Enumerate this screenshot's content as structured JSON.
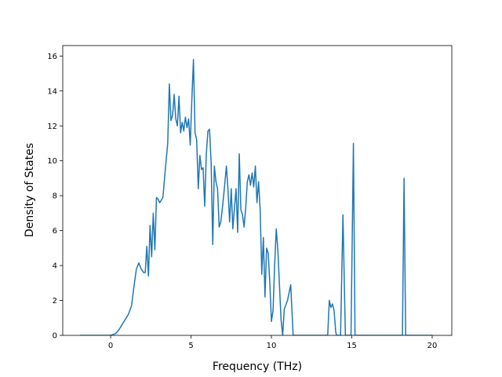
{
  "chart_data": {
    "type": "line",
    "x_label": "Frequency (THz)",
    "y_label": "Density of States",
    "color": "#1f77b4",
    "x": [
      -1.9,
      0,
      0.3,
      0.5,
      0.7,
      0.9,
      1.1,
      1.3,
      1.45,
      1.6,
      1.75,
      1.9,
      2.05,
      2.15,
      2.25,
      2.35,
      2.45,
      2.55,
      2.65,
      2.75,
      2.85,
      2.95,
      3.05,
      3.25,
      3.4,
      3.55,
      3.65,
      3.75,
      3.85,
      3.95,
      4.05,
      4.15,
      4.25,
      4.35,
      4.45,
      4.55,
      4.65,
      4.75,
      4.85,
      4.95,
      5.05,
      5.15,
      5.25,
      5.35,
      5.45,
      5.55,
      5.65,
      5.75,
      5.85,
      5.95,
      6.05,
      6.15,
      6.25,
      6.35,
      6.45,
      6.55,
      6.65,
      6.75,
      6.85,
      6.95,
      7.05,
      7.2,
      7.3,
      7.4,
      7.5,
      7.6,
      7.7,
      7.8,
      7.9,
      8.0,
      8.1,
      8.2,
      8.3,
      8.4,
      8.5,
      8.6,
      8.7,
      8.8,
      8.9,
      9.0,
      9.1,
      9.2,
      9.3,
      9.4,
      9.5,
      9.6,
      9.7,
      9.8,
      9.9,
      10.0,
      10.1,
      10.2,
      10.3,
      10.4,
      10.5,
      10.6,
      10.7,
      10.8,
      11.0,
      11.2,
      11.35,
      13.5,
      13.6,
      13.7,
      13.8,
      13.9,
      14.0,
      14.05,
      14.3,
      14.45,
      14.6,
      14.95,
      15.1,
      15.2,
      18.15,
      18.25,
      18.35,
      20
    ],
    "values": [
      0,
      0,
      0.1,
      0.3,
      0.6,
      0.9,
      1.2,
      1.7,
      2.8,
      3.8,
      4.15,
      3.8,
      3.6,
      3.6,
      5.1,
      3.4,
      6.3,
      4.5,
      7.0,
      4.9,
      7.9,
      7.8,
      7.6,
      7.9,
      9.5,
      11,
      14.4,
      12.3,
      12.6,
      13.8,
      12.4,
      12.0,
      13.7,
      11.6,
      12.2,
      11.7,
      12.5,
      11.9,
      12.4,
      10.9,
      13.5,
      15.8,
      11.6,
      11.2,
      8.4,
      10.3,
      9.5,
      9.6,
      7.4,
      10.4,
      11.7,
      11.8,
      9.9,
      5.2,
      9.7,
      8.8,
      8.4,
      6.2,
      6.5,
      7.3,
      8.2,
      9.7,
      8.3,
      6.5,
      8.4,
      6.1,
      7.3,
      8.4,
      5.9,
      10.4,
      7.2,
      6.9,
      6.2,
      7.3,
      8.8,
      9.2,
      8.6,
      9.3,
      8.5,
      9.7,
      7.6,
      8.8,
      7.2,
      3.5,
      5.6,
      2.2,
      5.0,
      4.7,
      3.0,
      0.8,
      1.4,
      4.0,
      6.1,
      4.9,
      2.9,
      0.9,
      0,
      1.5,
      2.0,
      2.9,
      0,
      0,
      2.0,
      1.6,
      1.8,
      1.4,
      0.2,
      0,
      0,
      6.9,
      0,
      0,
      11,
      0,
      0,
      9.0,
      0,
      0
    ],
    "xlim": [
      -2.98,
      21.22
    ],
    "ylim": [
      0,
      16.6
    ],
    "xticks": [
      0,
      5,
      10,
      15,
      20
    ],
    "yticks": [
      0,
      2,
      4,
      6,
      8,
      10,
      12,
      14,
      16
    ]
  }
}
